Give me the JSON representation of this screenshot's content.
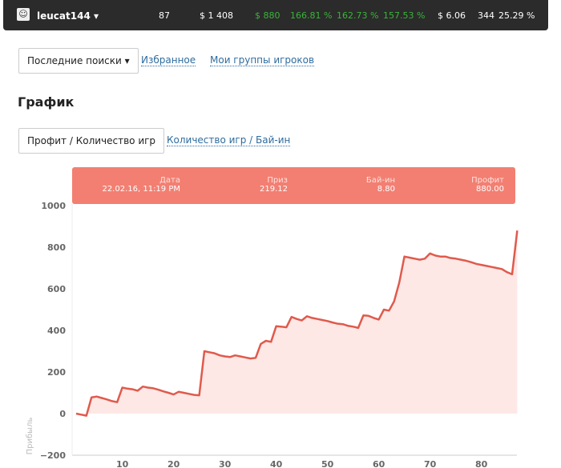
{
  "topbar": {
    "username": "leucat144",
    "games": "87",
    "buyins": "$ 1 408",
    "profit": "$ 880",
    "roi1": "166.81 %",
    "roi2": "162.73 %",
    "roi3": "157.53 %",
    "avg": "$ 6.06",
    "count": "344",
    "pct": "25.29 %"
  },
  "filters": {
    "recent": "Последние поиски",
    "favorites": "Избранное",
    "groups": "Мои группы игроков"
  },
  "section_title": "График",
  "tabs": {
    "active": "Профит / Количество игр",
    "other": "Количество игр / Бай-ин"
  },
  "tooltip": {
    "date_label": "Дата",
    "date": "22.02.16, 11:19 PM",
    "prize_label": "Приз",
    "prize": "219.12",
    "buyin_label": "Бай-ин",
    "buyin": "8.80",
    "profit_label": "Профит",
    "profit": "880.00"
  },
  "colors": {
    "line": "#e05a4c",
    "fill": "#fde8e6",
    "tooltip": "#f27f72"
  },
  "chart_data": {
    "type": "area",
    "title": "",
    "xlabel": "",
    "ylabel": "Прибыль",
    "xlim": [
      0,
      87
    ],
    "ylim": [
      -200,
      1000
    ],
    "yticks": [
      -200,
      0,
      200,
      400,
      600,
      800,
      1000
    ],
    "xticks": [
      10,
      20,
      30,
      40,
      50,
      60,
      70,
      80
    ],
    "x": [
      1,
      2,
      3,
      4,
      5,
      6,
      7,
      8,
      9,
      10,
      11,
      12,
      13,
      14,
      15,
      16,
      17,
      18,
      19,
      20,
      21,
      22,
      23,
      24,
      25,
      26,
      27,
      28,
      29,
      30,
      31,
      32,
      33,
      34,
      35,
      36,
      37,
      38,
      39,
      40,
      41,
      42,
      43,
      44,
      45,
      46,
      47,
      48,
      49,
      50,
      51,
      52,
      53,
      54,
      55,
      56,
      57,
      58,
      59,
      60,
      61,
      62,
      63,
      64,
      65,
      66,
      67,
      68,
      69,
      70,
      71,
      72,
      73,
      74,
      75,
      76,
      77,
      78,
      79,
      80,
      81,
      82,
      83,
      84,
      85,
      86,
      87
    ],
    "values": [
      0,
      -5,
      -10,
      78,
      82,
      75,
      68,
      60,
      55,
      125,
      120,
      117,
      110,
      130,
      125,
      122,
      115,
      107,
      100,
      92,
      105,
      100,
      95,
      90,
      88,
      300,
      295,
      290,
      280,
      275,
      272,
      280,
      275,
      270,
      265,
      268,
      335,
      350,
      345,
      420,
      418,
      415,
      465,
      455,
      448,
      468,
      460,
      455,
      450,
      445,
      438,
      432,
      430,
      422,
      418,
      412,
      472,
      470,
      460,
      452,
      500,
      495,
      540,
      630,
      755,
      750,
      745,
      740,
      745,
      770,
      760,
      755,
      755,
      748,
      745,
      740,
      735,
      728,
      720,
      715,
      710,
      705,
      700,
      695,
      680,
      670,
      880
    ]
  }
}
